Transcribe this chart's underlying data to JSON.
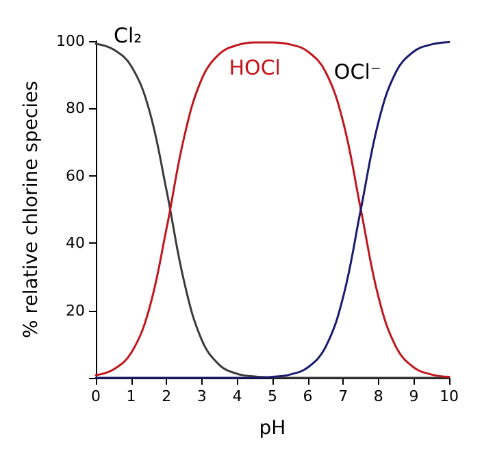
{
  "chart_data": {
    "type": "line",
    "xlabel": "pH",
    "ylabel": "% relative chlorine species",
    "x": [
      0,
      0.5,
      1,
      1.5,
      2,
      2.5,
      3,
      3.5,
      4,
      4.5,
      5,
      5.5,
      6,
      6.5,
      7,
      7.5,
      8,
      8.5,
      9,
      9.5,
      10
    ],
    "series": [
      {
        "name": "Cl₂",
        "color": "#3a3a3a",
        "values": [
          99.2,
          97.5,
          92.6,
          79.9,
          55.7,
          28.5,
          11.2,
          3.8,
          1.2,
          0.4,
          0.1,
          0,
          0,
          0,
          0,
          0,
          0,
          0,
          0,
          0,
          0
        ]
      },
      {
        "name": "HOCl",
        "color": "#c0161c",
        "values": [
          0.8,
          2.5,
          7.4,
          20.1,
          44.3,
          71.5,
          88.8,
          96.2,
          98.8,
          99.6,
          99.6,
          99.0,
          96.9,
          90.9,
          76.0,
          50,
          24.0,
          9.1,
          3.1,
          1.0,
          0.3
        ]
      },
      {
        "name": "OCl⁻",
        "color": "#1a1a6e",
        "values": [
          0,
          0,
          0,
          0,
          0,
          0,
          0,
          0,
          0,
          0,
          0.3,
          1.0,
          3.1,
          9.1,
          24.0,
          50,
          76.0,
          90.9,
          96.9,
          99.0,
          99.7
        ]
      }
    ],
    "xlim": [
      0,
      10
    ],
    "xticks": [
      0,
      1,
      2,
      3,
      4,
      5,
      6,
      7,
      8,
      9,
      10
    ],
    "ylim": [
      0,
      100
    ],
    "yticks": [
      {
        "value": 0,
        "label": null
      },
      20,
      40,
      60,
      80,
      100
    ],
    "grid": false,
    "legend": false,
    "marker": "none",
    "line_style": "solid"
  }
}
